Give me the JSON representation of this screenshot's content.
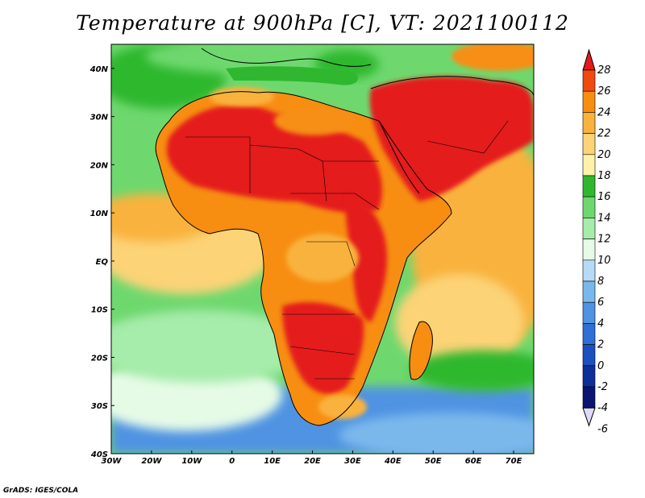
{
  "title": "Temperature at 900hPa [C], VT: 2021100112",
  "footer": "GrADS: IGES/COLA",
  "map": {
    "lon_range": [
      -30,
      75
    ],
    "lat_range": [
      -40,
      45
    ],
    "lon_ticks": [
      {
        "value": -30,
        "label": "30W"
      },
      {
        "value": -20,
        "label": "20W"
      },
      {
        "value": -10,
        "label": "10W"
      },
      {
        "value": 0,
        "label": "0"
      },
      {
        "value": 10,
        "label": "10E"
      },
      {
        "value": 20,
        "label": "20E"
      },
      {
        "value": 30,
        "label": "30E"
      },
      {
        "value": 40,
        "label": "40E"
      },
      {
        "value": 50,
        "label": "50E"
      },
      {
        "value": 60,
        "label": "60E"
      },
      {
        "value": 70,
        "label": "70E"
      }
    ],
    "lat_ticks": [
      {
        "value": 40,
        "label": "40N"
      },
      {
        "value": 30,
        "label": "30N"
      },
      {
        "value": 20,
        "label": "20N"
      },
      {
        "value": 10,
        "label": "10N"
      },
      {
        "value": 0,
        "label": "EQ"
      },
      {
        "value": -10,
        "label": "10S"
      },
      {
        "value": -20,
        "label": "20S"
      },
      {
        "value": -30,
        "label": "30S"
      },
      {
        "value": -40,
        "label": "40S"
      }
    ]
  },
  "colorbar": {
    "levels": [
      "28",
      "26",
      "24",
      "22",
      "20",
      "18",
      "16",
      "14",
      "12",
      "10",
      "8",
      "6",
      "4",
      "2",
      "0",
      "-2",
      "-4",
      "-6"
    ],
    "colors": [
      "#e41a1a",
      "#f04a0f",
      "#f78e12",
      "#f9b23c",
      "#fcd377",
      "#fdf3a8",
      "#2fb82f",
      "#6ed86e",
      "#a6ecaa",
      "#e6fbe6",
      "#b7dbf6",
      "#7ab8ec",
      "#4f93e2",
      "#2f6fd6",
      "#1c4fbf",
      "#0e2f9a",
      "#0a1672",
      "#dcdcfa"
    ]
  },
  "field_colors": {
    "water": "#a8e0ff",
    "cold_ocean": "#4f93e2",
    "cool_ocean": "#a6ecaa",
    "mid_ocean": "#6ed86e",
    "warm_ocean": "#fcd377",
    "warm_sea": "#f9b23c",
    "hot": "#e41a1a",
    "very_hot": "#d81a0e",
    "land_warm": "#f78e12",
    "med": "#2fb82f"
  }
}
